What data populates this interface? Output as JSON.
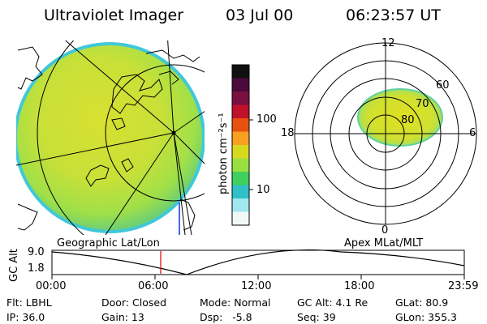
{
  "header": {
    "title": "Ultraviolet Imager",
    "date": "03 Jul 00",
    "time": "06:23:57 UT"
  },
  "colorbar": {
    "unit_label": "photon cm⁻²s⁻¹",
    "ticks": [
      "100",
      "10"
    ],
    "colors": [
      "#101010",
      "#4a0a3a",
      "#7a1040",
      "#c0102a",
      "#e85010",
      "#f8a020",
      "#d8d820",
      "#98e040",
      "#40d060",
      "#30c0c8",
      "#a0e8f0",
      "#f0f8f8"
    ]
  },
  "polar_plot": {
    "mlt_labels": {
      "top": "12",
      "bottom": "0",
      "left": "18",
      "right": "6"
    },
    "lat_labels": [
      "60",
      "70",
      "80"
    ]
  },
  "altitude_plot": {
    "axis_label": "GC Alt",
    "y_ticks": [
      "9.0",
      "1.8"
    ],
    "left_caption": "Geographic Lat/Lon",
    "right_caption": "Apex MLat/MLT",
    "x_ticks": [
      "00:00",
      "06:00",
      "12:00",
      "18:00",
      "23:59"
    ],
    "current_time_color": "#e00000"
  },
  "status": {
    "row1": {
      "flt": "Flt: LBHL",
      "door": "Door: Closed",
      "mode": "Mode: Normal",
      "gc_alt": "GC Alt: 4.1 Re",
      "glat": "GLat: 80.9"
    },
    "row2": {
      "ip": "IP: 36.0",
      "gain": "Gain: 13",
      "dsp": "Dsp:   -5.8",
      "seq": "Seq: 39",
      "glon": "GLon: 355.3"
    }
  }
}
